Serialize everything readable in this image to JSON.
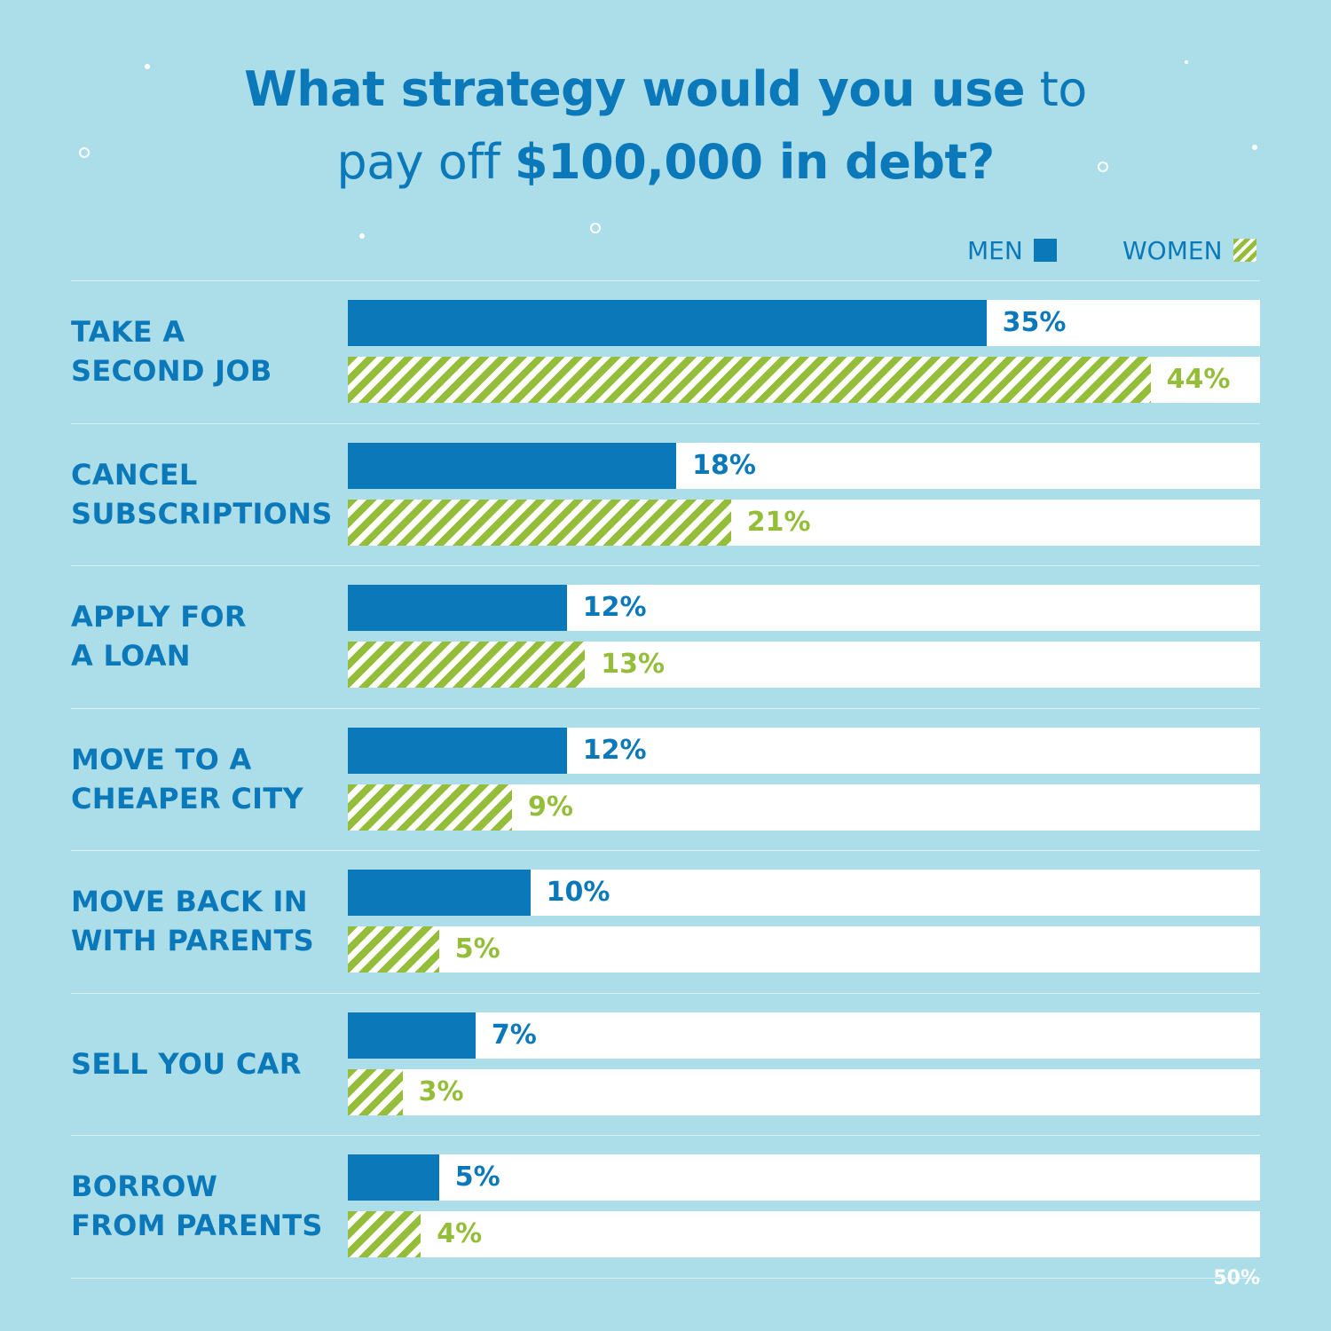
{
  "title": {
    "part1_bold": "What strategy would you use",
    "part1_thin": " to",
    "part2_thin": "pay off ",
    "part2_bold": "$100,000 in debt?"
  },
  "legend": {
    "men_label": "MEN",
    "women_label": "WOMEN"
  },
  "colors": {
    "men": "#0a78b9",
    "women": "#94be3a",
    "background": "#acdeea"
  },
  "axis": {
    "max_label": "50%"
  },
  "chart_data": {
    "type": "bar",
    "orientation": "horizontal",
    "title": "What strategy would you use to pay off $100,000 in debt?",
    "categories": [
      "TAKE A\nSECOND JOB",
      "CANCEL\nSUBSCRIPTIONS",
      "APPLY FOR\nA LOAN",
      "MOVE TO A\nCHEAPER CITY",
      "MOVE BACK IN\nWITH PARENTS",
      "SELL YOU CAR",
      "BORROW\nFROM PARENTS"
    ],
    "series": [
      {
        "name": "MEN",
        "values": [
          35,
          18,
          12,
          12,
          10,
          7,
          5
        ]
      },
      {
        "name": "WOMEN",
        "values": [
          44,
          21,
          13,
          9,
          5,
          3,
          4
        ]
      }
    ],
    "value_labels": {
      "MEN": [
        "35%",
        "18%",
        "12%",
        "12%",
        "10%",
        "7%",
        "5%"
      ],
      "WOMEN": [
        "44%",
        "21%",
        "13%",
        "9%",
        "5%",
        "3%",
        "4%"
      ]
    },
    "xlim": [
      0,
      50
    ],
    "legend_position": "top-right",
    "grid": false
  }
}
